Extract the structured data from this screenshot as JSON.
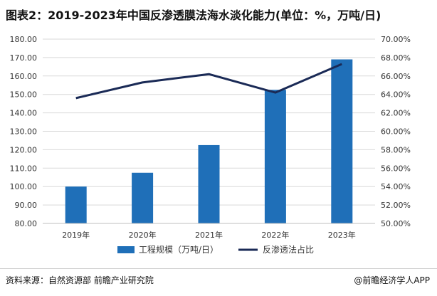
{
  "title": "图表2：2019-2023年中国反渗透膜法海水淡化能力(单位：%，万吨/日)",
  "footer": {
    "source": "资料来源：自然资源部 前瞻产业研究院",
    "brand": "@前瞻经济学人APP"
  },
  "colors": {
    "bar": "#1f6fb8",
    "line": "#1a2a56",
    "grid": "#d9d9d9"
  },
  "chart_data": {
    "type": "bar",
    "categories": [
      "2019年",
      "2020年",
      "2021年",
      "2022年",
      "2023年"
    ],
    "series": [
      {
        "name": "工程规模（万吨/日）",
        "type": "bar",
        "axis": "left",
        "values": [
          100.0,
          107.5,
          122.5,
          152.5,
          169.0
        ]
      },
      {
        "name": "反渗透法占比",
        "type": "line",
        "axis": "right",
        "values": [
          63.6,
          65.3,
          66.2,
          64.2,
          67.3
        ]
      }
    ],
    "y_left": {
      "min": 80,
      "max": 180,
      "step": 10,
      "ticks": [
        "80.00",
        "90.00",
        "100.00",
        "110.00",
        "120.00",
        "130.00",
        "140.00",
        "150.00",
        "160.00",
        "170.00",
        "180.00"
      ]
    },
    "y_right": {
      "min": 50,
      "max": 70,
      "step": 2,
      "ticks": [
        "50.00%",
        "52.00%",
        "54.00%",
        "56.00%",
        "58.00%",
        "60.00%",
        "62.00%",
        "64.00%",
        "66.00%",
        "68.00%",
        "70.00%"
      ]
    },
    "legend_position": "bottom",
    "grid": true
  }
}
